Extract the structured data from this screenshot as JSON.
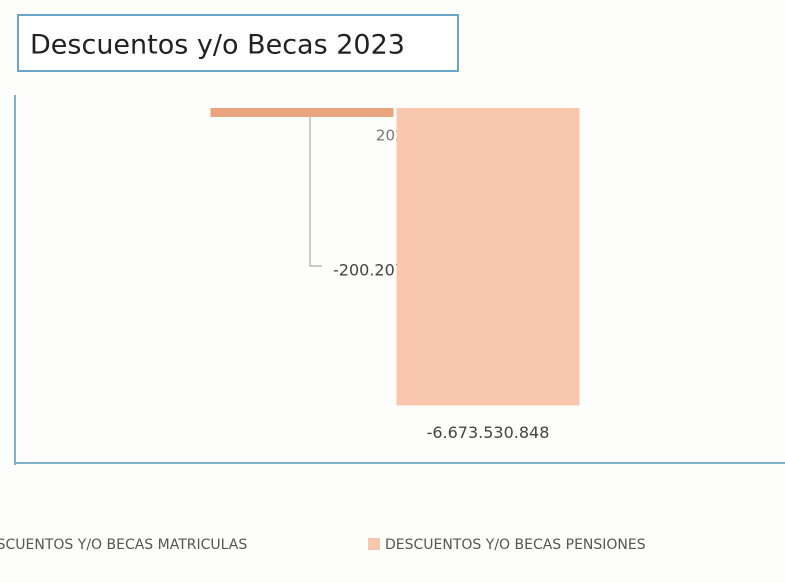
{
  "chart_data": {
    "type": "bar",
    "title": "Descuentos y/o Becas 2023",
    "categories": [
      "2023"
    ],
    "series": [
      {
        "name": "DESCUENTOS Y/O BECAS MATRICULAS",
        "color": "#e9a47c",
        "values": [
          -200207831
        ],
        "value_labels": [
          "-200.207.831"
        ]
      },
      {
        "name": "DESCUENTOS Y/O BECAS PENSIONES",
        "color": "#f8c7ae",
        "values": [
          -6673530848
        ],
        "value_labels": [
          "-6.673.530.848"
        ]
      }
    ],
    "ylim": [
      -7000000000,
      0
    ]
  }
}
